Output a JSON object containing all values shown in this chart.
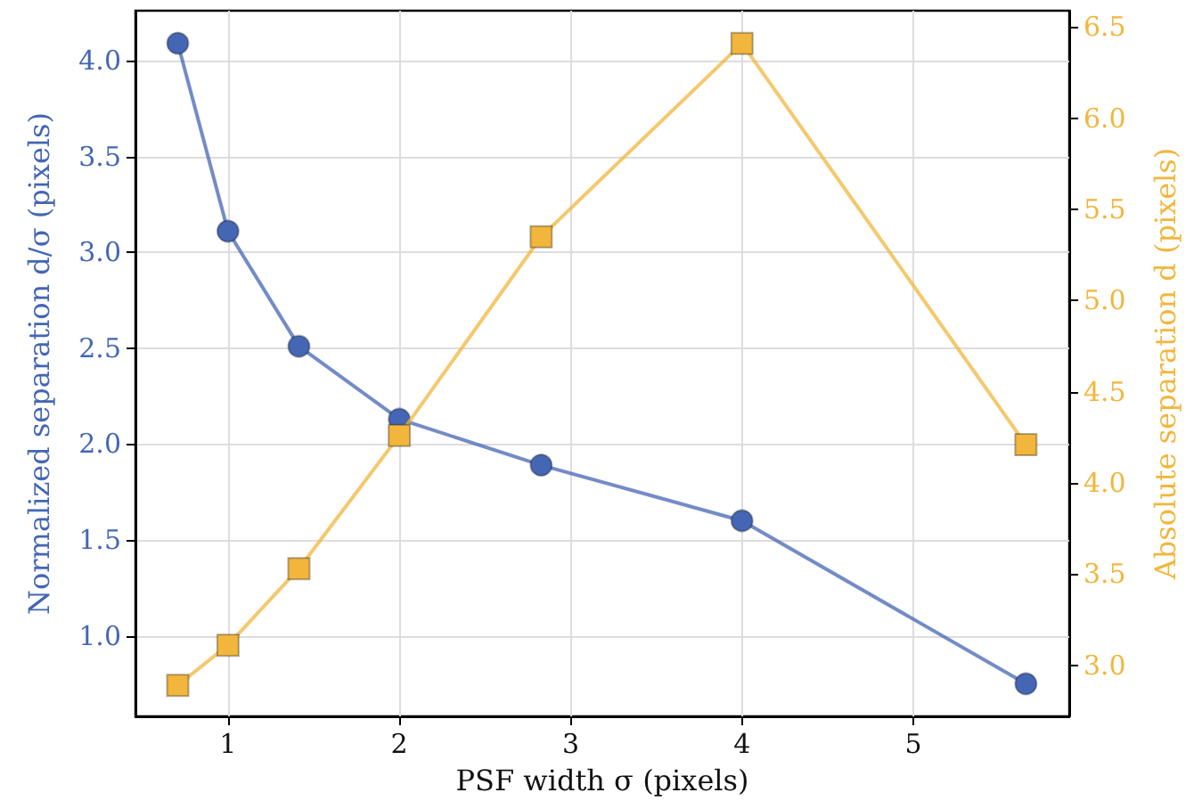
{
  "chart_data": {
    "type": "line",
    "xlabel": "PSF width σ (pixels)",
    "ylabel": "Normalized separation d/σ (pixels)",
    "y2label": "Absolute separation d (pixels)",
    "xlim": [
      0.46,
      5.91
    ],
    "xticks": [
      1,
      2,
      3,
      4,
      5
    ],
    "ylim": [
      0.58,
      4.26
    ],
    "yticks": [
      {
        "value": 1,
        "label": "1.0"
      },
      {
        "value": 1.5,
        "label": "1.5"
      },
      {
        "value": 2,
        "label": "2.0"
      },
      {
        "value": 2.5,
        "label": "2.5"
      },
      {
        "value": 3,
        "label": "3.0"
      },
      {
        "value": 3.5,
        "label": "3.5"
      },
      {
        "value": 4,
        "label": "4.0"
      }
    ],
    "y2lim": [
      2.72,
      6.59
    ],
    "y2ticks": [
      {
        "value": 3,
        "label": "3.0"
      },
      {
        "value": 3.5,
        "label": "3.5"
      },
      {
        "value": 4,
        "label": "4.0"
      },
      {
        "value": 4.5,
        "label": "4.5"
      },
      {
        "value": 5,
        "label": "5.0"
      },
      {
        "value": 5.5,
        "label": "5.5"
      },
      {
        "value": 6,
        "label": "6.0"
      },
      {
        "value": 6.5,
        "label": "6.5"
      }
    ],
    "grid": true,
    "line_style": "solid",
    "x": [
      0.707,
      1,
      1.414,
      2,
      2.828,
      4,
      5.657
    ],
    "series": [
      {
        "color": "#4466b4",
        "marker": "circle",
        "values": [
          4.09,
          3.11,
          2.51,
          2.13,
          1.89,
          1.6,
          0.75
        ]
      },
      {
        "color": "#f2b63c",
        "marker": "square",
        "axis": "y2",
        "values": [
          2.89,
          3.11,
          3.53,
          4.26,
          5.35,
          6.41,
          4.21
        ]
      }
    ]
  }
}
